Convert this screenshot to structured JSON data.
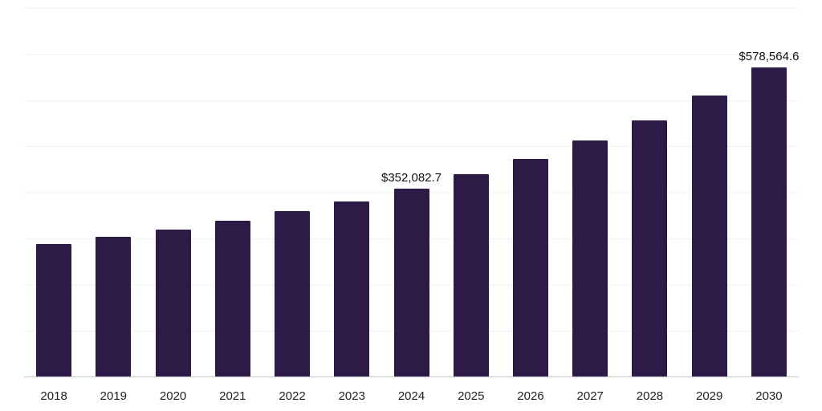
{
  "chart_data": {
    "type": "bar",
    "title": "",
    "xlabel": "",
    "ylabel": "",
    "categories": [
      "2018",
      "2019",
      "2020",
      "2021",
      "2022",
      "2023",
      "2024",
      "2025",
      "2026",
      "2027",
      "2028",
      "2029",
      "2030"
    ],
    "values": [
      248000,
      261000,
      275000,
      291000,
      309000,
      328000,
      352082.7,
      379000,
      407000,
      442000,
      480000,
      526000,
      578564.6
    ],
    "data_labels": {
      "2024": "$352,082.7",
      "2030": "$578,564.6"
    },
    "bar_color": "#2e1a47",
    "ylim": [
      0,
      690000
    ],
    "grid": true,
    "legend": "none"
  }
}
